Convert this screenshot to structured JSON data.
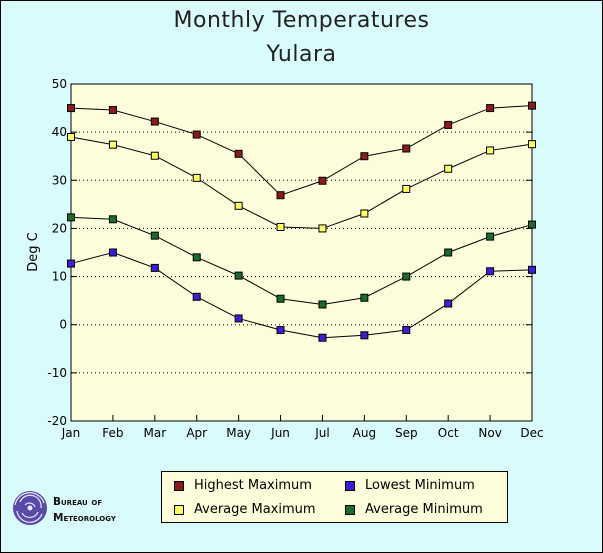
{
  "title_line1": "Monthly Temperatures",
  "title_line2": "Yulara",
  "colors": {
    "frame_background": "#d9fbfb",
    "plot_background": "#fdfddc",
    "line": "#000000",
    "grid": "#000000"
  },
  "chart_data": {
    "type": "line",
    "title": "Monthly Temperatures",
    "subtitle": "Yulara",
    "xlabel": "",
    "ylabel": "Deg C",
    "ylim": [
      -20,
      50
    ],
    "yticks": [
      -20,
      -10,
      0,
      10,
      20,
      30,
      40,
      50
    ],
    "grid": true,
    "legend_position": "bottom",
    "categories": [
      "Jan",
      "Feb",
      "Mar",
      "Apr",
      "May",
      "Jun",
      "Jul",
      "Aug",
      "Sep",
      "Oct",
      "Nov",
      "Dec"
    ],
    "series": [
      {
        "name": "Highest Maximum",
        "color": "#8b1a1a",
        "values": [
          45.0,
          44.6,
          42.2,
          39.5,
          35.5,
          26.9,
          29.9,
          35.0,
          36.6,
          41.5,
          45.0,
          45.5
        ]
      },
      {
        "name": "Average Maximum",
        "color": "#ffff66",
        "values": [
          39.0,
          37.4,
          35.1,
          30.5,
          24.7,
          20.3,
          20.0,
          23.1,
          28.2,
          32.4,
          36.2,
          37.5
        ]
      },
      {
        "name": "Average Minimum",
        "color": "#1b6b2a",
        "values": [
          22.3,
          21.9,
          18.5,
          14.0,
          10.2,
          5.4,
          4.2,
          5.6,
          10.0,
          15.0,
          18.3,
          20.8
        ]
      },
      {
        "name": "Lowest Minimum",
        "color": "#3a1fd6",
        "values": [
          12.7,
          15.0,
          11.8,
          5.8,
          1.3,
          -1.1,
          -2.7,
          -2.2,
          -1.1,
          4.4,
          11.1,
          11.4
        ]
      }
    ]
  },
  "legend": {
    "items": [
      {
        "label": "Highest Maximum",
        "color": "#8b1a1a"
      },
      {
        "label": "Lowest Minimum",
        "color": "#3a1fd6"
      },
      {
        "label": "Average Maximum",
        "color": "#ffff66"
      },
      {
        "label": "Average Minimum",
        "color": "#1b6b2a"
      }
    ]
  },
  "logo": {
    "line1": "Bureau of",
    "line2": "Meteorology",
    "icon": "bom-swirl-icon"
  }
}
